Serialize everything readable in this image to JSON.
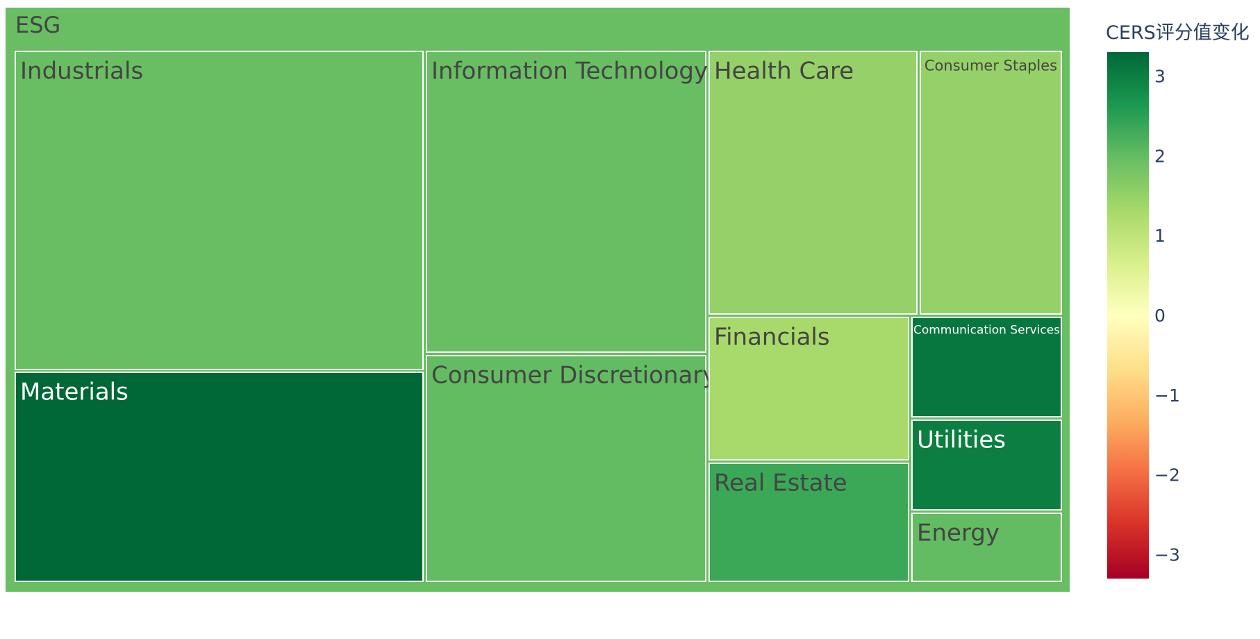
{
  "chart_data": {
    "type": "treemap",
    "root": {
      "label": "ESG",
      "value": 1.95
    },
    "children": [
      {
        "label": "Industrials",
        "value": 1.95
      },
      {
        "label": "Materials",
        "value": 3.3
      },
      {
        "label": "Information Technology",
        "value": 1.95
      },
      {
        "label": "Consumer Discretionary",
        "value": 2.0
      },
      {
        "label": "Health Care",
        "value": 1.5
      },
      {
        "label": "Consumer Staples",
        "value": 1.5
      },
      {
        "label": "Financials",
        "value": 1.3
      },
      {
        "label": "Real Estate",
        "value": 2.35
      },
      {
        "label": "Communication Services",
        "value": 3.1
      },
      {
        "label": "Utilities",
        "value": 3.0
      },
      {
        "label": "Energy",
        "value": 2.0
      }
    ],
    "colorbar": {
      "title": "CERS评分值变化",
      "colorscale": "RdYlGn",
      "range": [
        -3.3,
        3.3
      ],
      "ticks": [
        3,
        2,
        1,
        0,
        -1,
        -2,
        -3
      ],
      "tick_labels": [
        "3",
        "2",
        "1",
        "0",
        "−1",
        "−2",
        "−3"
      ]
    }
  }
}
